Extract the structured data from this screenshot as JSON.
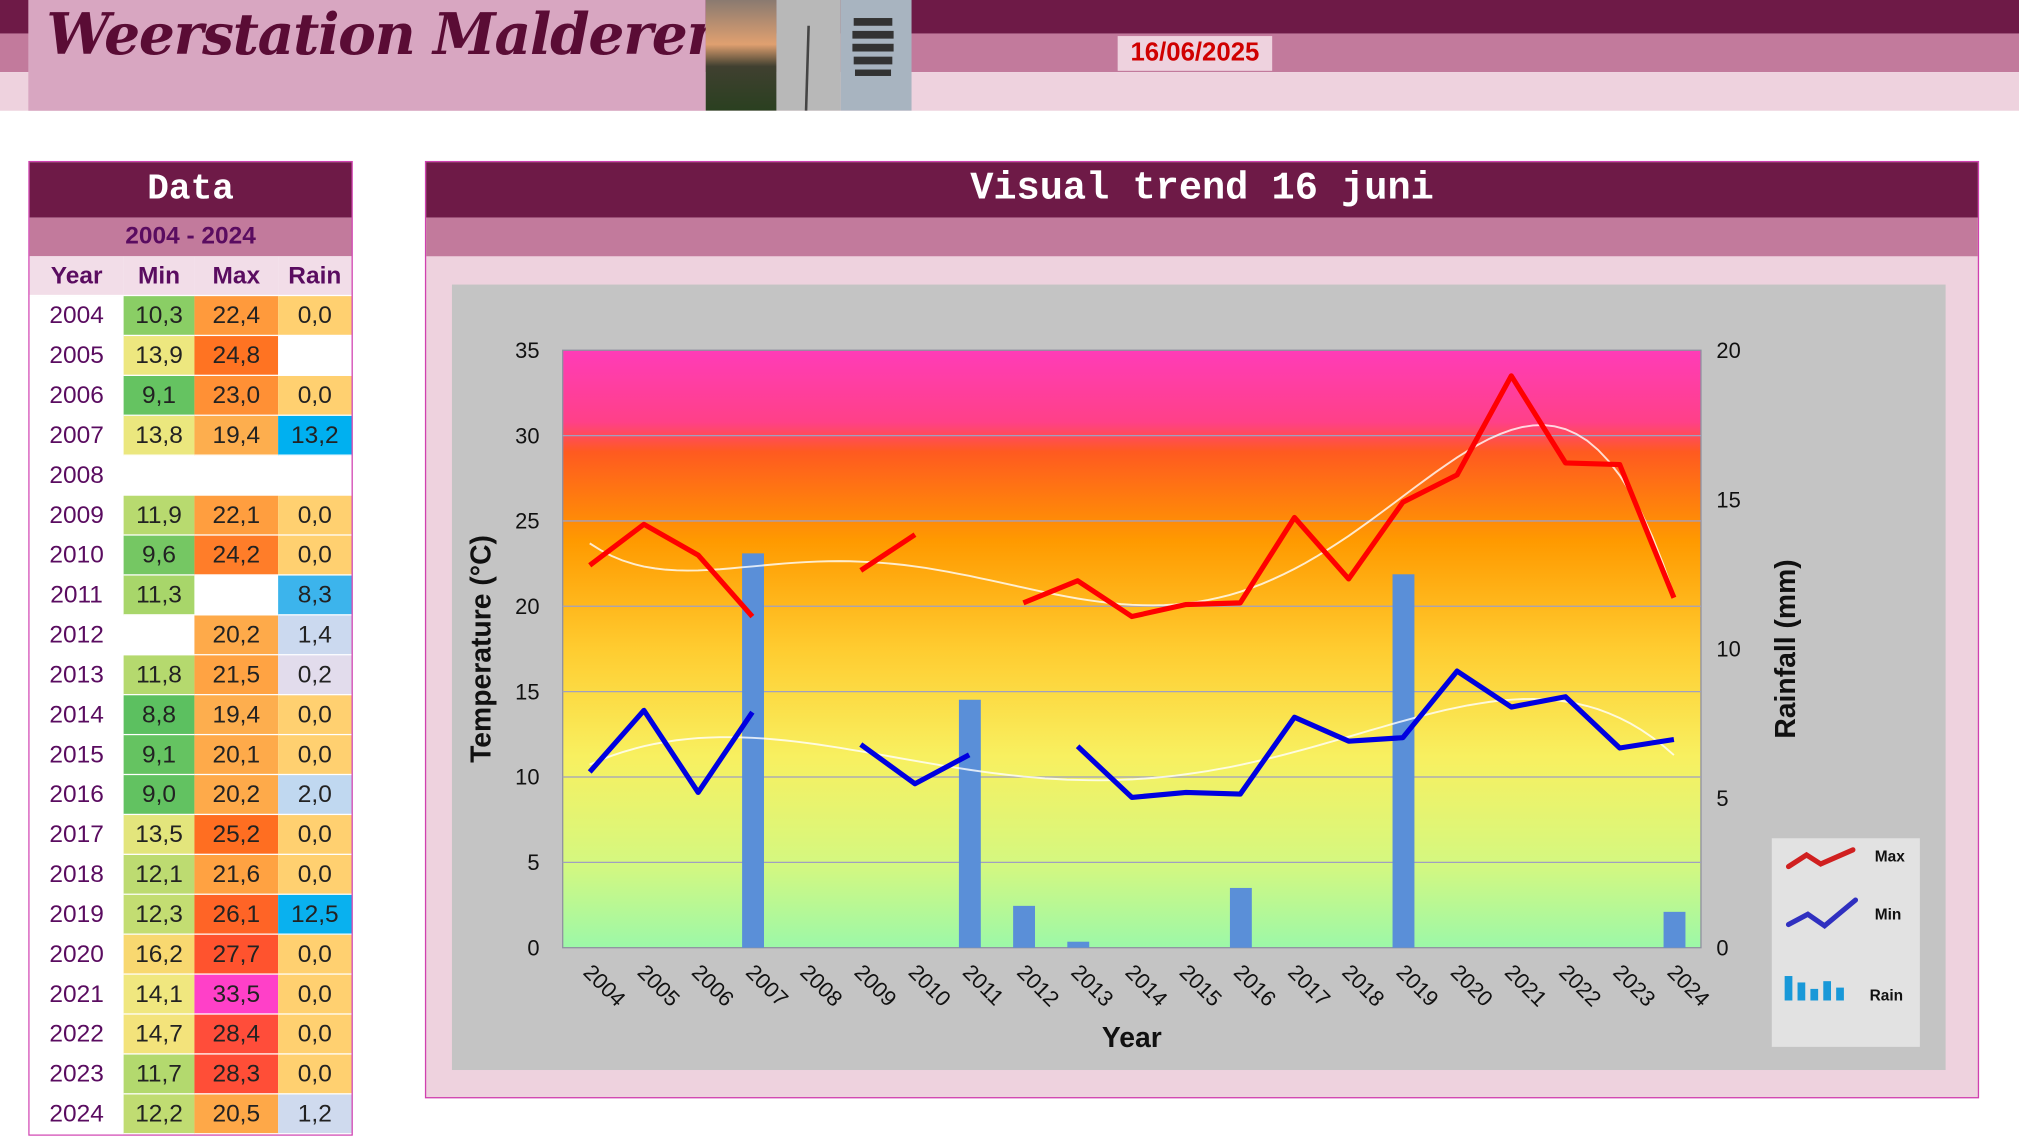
{
  "header": {
    "title": "Weerstation Malderen",
    "date": "16/06/2025"
  },
  "table": {
    "title": "Data",
    "range": "2004 - 2024",
    "columns": [
      "Year",
      "Min",
      "Max",
      "Rain"
    ],
    "rows": [
      [
        "2004",
        "10,3",
        "22,4",
        "0,0"
      ],
      [
        "2005",
        "13,9",
        "24,8",
        ""
      ],
      [
        "2006",
        "9,1",
        "23,0",
        "0,0"
      ],
      [
        "2007",
        "13,8",
        "19,4",
        "13,2"
      ],
      [
        "2008",
        "",
        "",
        ""
      ],
      [
        "2009",
        "11,9",
        "22,1",
        "0,0"
      ],
      [
        "2010",
        "9,6",
        "24,2",
        "0,0"
      ],
      [
        "2011",
        "11,3",
        "",
        "8,3"
      ],
      [
        "2012",
        "",
        "20,2",
        "1,4"
      ],
      [
        "2013",
        "11,8",
        "21,5",
        "0,2"
      ],
      [
        "2014",
        "8,8",
        "19,4",
        "0,0"
      ],
      [
        "2015",
        "9,1",
        "20,1",
        "0,0"
      ],
      [
        "2016",
        "9,0",
        "20,2",
        "2,0"
      ],
      [
        "2017",
        "13,5",
        "25,2",
        "0,0"
      ],
      [
        "2018",
        "12,1",
        "21,6",
        "0,0"
      ],
      [
        "2019",
        "12,3",
        "26,1",
        "12,5"
      ],
      [
        "2020",
        "16,2",
        "27,7",
        "0,0"
      ],
      [
        "2021",
        "14,1",
        "33,5",
        "0,0"
      ],
      [
        "2022",
        "14,7",
        "28,4",
        "0,0"
      ],
      [
        "2023",
        "11,7",
        "28,3",
        "0,0"
      ],
      [
        "2024",
        "12,2",
        "20,5",
        "1,2"
      ]
    ]
  },
  "chart_panel": {
    "title": "Visual  trend 16 juni"
  },
  "chart_data": {
    "type": "line",
    "title": "",
    "xlabel": "Year",
    "ylabel": "Temperature (°C)",
    "y2label": "Rainfall (mm)",
    "ylim": [
      0,
      35
    ],
    "y2lim": [
      0,
      20
    ],
    "yticks": [
      0,
      5,
      10,
      15,
      20,
      25,
      30,
      35
    ],
    "y2ticks": [
      0,
      5,
      10,
      15,
      20
    ],
    "categories": [
      "2004",
      "2005",
      "2006",
      "2007",
      "2008",
      "2009",
      "2010",
      "2011",
      "2012",
      "2013",
      "2014",
      "2015",
      "2016",
      "2017",
      "2018",
      "2019",
      "2020",
      "2021",
      "2022",
      "2023",
      "2024"
    ],
    "series": [
      {
        "name": "Max",
        "type": "line",
        "axis": "left",
        "color": "#ff0000",
        "values": [
          22.4,
          24.8,
          23.0,
          19.4,
          null,
          22.1,
          24.2,
          null,
          20.2,
          21.5,
          19.4,
          20.1,
          20.2,
          25.2,
          21.6,
          26.1,
          27.7,
          33.5,
          28.4,
          28.3,
          20.5
        ]
      },
      {
        "name": "Min",
        "type": "line",
        "axis": "left",
        "color": "#0000e0",
        "values": [
          10.3,
          13.9,
          9.1,
          13.8,
          null,
          11.9,
          9.6,
          11.3,
          null,
          11.8,
          8.8,
          9.1,
          9.0,
          13.5,
          12.1,
          12.3,
          16.2,
          14.1,
          14.7,
          11.7,
          12.2
        ]
      },
      {
        "name": "Rain",
        "type": "bar",
        "axis": "right",
        "color": "#5a8fd8",
        "values": [
          0,
          null,
          0,
          13.2,
          null,
          0,
          0,
          8.3,
          1.4,
          0.2,
          0,
          0,
          2.0,
          0,
          0,
          12.5,
          0,
          0,
          0,
          0,
          1.2
        ]
      }
    ],
    "trendlines": true,
    "grid": true,
    "legend": "right"
  }
}
